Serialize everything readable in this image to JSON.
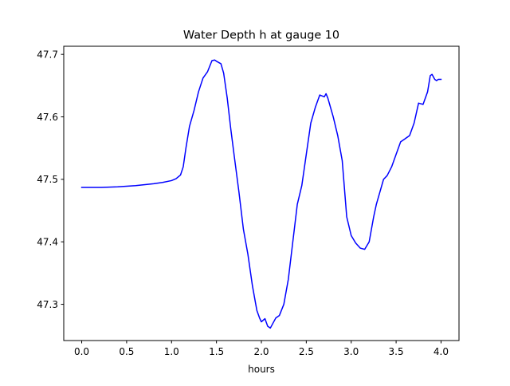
{
  "chart_data": {
    "type": "line",
    "title": "Water Depth h at gauge 10",
    "xlabel": "hours",
    "ylabel": "",
    "xlim": [
      -0.2,
      4.2
    ],
    "ylim": [
      47.242,
      47.713
    ],
    "x_ticks": [
      0.0,
      0.5,
      1.0,
      1.5,
      2.0,
      2.5,
      3.0,
      3.5,
      4.0
    ],
    "x_tick_labels": [
      "0.0",
      "0.5",
      "1.0",
      "1.5",
      "2.0",
      "2.5",
      "3.0",
      "3.5",
      "4.0"
    ],
    "y_ticks": [
      47.3,
      47.4,
      47.5,
      47.6,
      47.7
    ],
    "y_tick_labels": [
      "47.3",
      "47.4",
      "47.5",
      "47.6",
      "47.7"
    ],
    "grid": false,
    "legend": null,
    "series": [
      {
        "color": "#0000ff",
        "x": [
          0.0,
          0.2,
          0.4,
          0.6,
          0.8,
          0.9,
          1.0,
          1.05,
          1.1,
          1.13,
          1.16,
          1.2,
          1.25,
          1.3,
          1.35,
          1.4,
          1.45,
          1.48,
          1.5,
          1.55,
          1.58,
          1.62,
          1.66,
          1.7,
          1.75,
          1.8,
          1.85,
          1.9,
          1.95,
          1.98,
          2.0,
          2.04,
          2.07,
          2.1,
          2.13,
          2.16,
          2.2,
          2.25,
          2.3,
          2.35,
          2.4,
          2.45,
          2.5,
          2.55,
          2.6,
          2.65,
          2.7,
          2.72,
          2.74,
          2.76,
          2.8,
          2.85,
          2.9,
          2.95,
          3.0,
          3.05,
          3.1,
          3.15,
          3.2,
          3.25,
          3.28,
          3.32,
          3.36,
          3.4,
          3.45,
          3.5,
          3.55,
          3.6,
          3.65,
          3.7,
          3.75,
          3.8,
          3.85,
          3.88,
          3.9,
          3.93,
          3.95,
          3.97,
          4.0
        ],
        "y": [
          47.487,
          47.487,
          47.488,
          47.49,
          47.493,
          47.495,
          47.498,
          47.501,
          47.507,
          47.52,
          47.55,
          47.585,
          47.61,
          47.64,
          47.662,
          47.672,
          47.69,
          47.691,
          47.689,
          47.685,
          47.67,
          47.63,
          47.58,
          47.535,
          47.48,
          47.42,
          47.38,
          47.33,
          47.29,
          47.278,
          47.272,
          47.277,
          47.265,
          47.262,
          47.27,
          47.278,
          47.282,
          47.3,
          47.34,
          47.4,
          47.46,
          47.49,
          47.54,
          47.59,
          47.615,
          47.635,
          47.632,
          47.637,
          47.63,
          47.62,
          47.6,
          47.57,
          47.53,
          47.44,
          47.41,
          47.398,
          47.39,
          47.388,
          47.4,
          47.44,
          47.46,
          47.48,
          47.5,
          47.506,
          47.52,
          47.54,
          47.56,
          47.565,
          47.57,
          47.59,
          47.622,
          47.62,
          47.64,
          47.666,
          47.668,
          47.66,
          47.658,
          47.66,
          47.66
        ]
      }
    ]
  }
}
